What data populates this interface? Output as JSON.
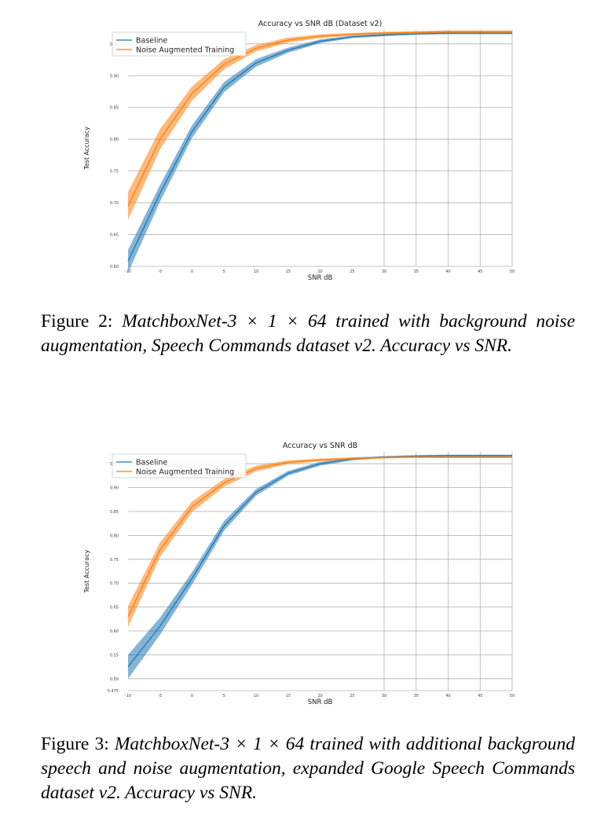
{
  "figures": [
    {
      "caption": {
        "label": "Figure 2:",
        "text": "MatchboxNet-3 × 1 × 64 trained with background noise augmentation, Speech Commands dataset v2. Accuracy vs SNR."
      }
    },
    {
      "caption": {
        "label": "Figure 3:",
        "text": "MatchboxNet-3 × 1 × 64 trained with additional background speech and noise augmentation, expanded Google Speech Commands dataset v2. Accuracy vs SNR."
      }
    }
  ],
  "chart_data": [
    {
      "type": "line",
      "title": "Accuracy vs SNR dB (Dataset v2)",
      "xlabel": "SNR dB",
      "ylabel": "Test Accuracy",
      "x_tick_labels": [
        "-10",
        "-5",
        "0",
        "5",
        "10",
        "15",
        "20",
        "25",
        "30",
        "35",
        "40",
        "45",
        "50"
      ],
      "y_ticks": [
        0.6,
        0.65,
        0.7,
        0.75,
        0.8,
        0.85,
        0.9,
        0.95
      ],
      "y_tick_labels": [
        "0.60",
        "0.65",
        "0.70",
        "0.75",
        "0.80",
        "0.85",
        "0.90",
        "0.95"
      ],
      "ylim": [
        0.6,
        0.972
      ],
      "grid": true,
      "legend": "top-left",
      "series": [
        {
          "name": "Baseline",
          "color": "#1f77b4",
          "values": [
            0.608,
            0.715,
            0.812,
            0.882,
            0.92,
            0.94,
            0.954,
            0.961,
            0.964,
            0.966,
            0.967,
            0.967,
            0.967
          ],
          "band": [
            0.018,
            0.013,
            0.01,
            0.008,
            0.006,
            0.004,
            0.003,
            0.002,
            0.002,
            0.002,
            0.002,
            0.002,
            0.002
          ]
        },
        {
          "name": "Noise Augmented Training",
          "color": "#ff7f0e",
          "values": [
            0.695,
            0.8,
            0.872,
            0.918,
            0.943,
            0.956,
            0.962,
            0.965,
            0.967,
            0.968,
            0.969,
            0.969,
            0.969
          ],
          "band": [
            0.022,
            0.016,
            0.011,
            0.008,
            0.005,
            0.004,
            0.003,
            0.002,
            0.002,
            0.002,
            0.002,
            0.002,
            0.002
          ]
        }
      ]
    },
    {
      "type": "line",
      "title": "Accuracy vs SNR dB",
      "xlabel": "SNR dB",
      "ylabel": "Test Accuracy",
      "x_tick_labels": [
        "-10",
        "-5",
        "0",
        "5",
        "10",
        "15",
        "20",
        "25",
        "30",
        "35",
        "40",
        "45",
        "50"
      ],
      "y_ticks": [
        0.475,
        0.5,
        0.55,
        0.6,
        0.65,
        0.7,
        0.75,
        0.8,
        0.85,
        0.9,
        0.95
      ],
      "y_tick_labels": [
        "0.475",
        "0.50",
        "0.55",
        "0.60",
        "0.65",
        "0.70",
        "0.75",
        "0.80",
        "0.85",
        "0.90",
        "0.95"
      ],
      "ylim": [
        0.475,
        0.975
      ],
      "grid": true,
      "legend": "top-left",
      "series": [
        {
          "name": "Baseline",
          "color": "#1f77b4",
          "values": [
            0.525,
            0.61,
            0.71,
            0.82,
            0.89,
            0.93,
            0.95,
            0.96,
            0.964,
            0.966,
            0.967,
            0.967,
            0.967
          ],
          "band": [
            0.025,
            0.018,
            0.013,
            0.01,
            0.007,
            0.005,
            0.004,
            0.003,
            0.002,
            0.002,
            0.002,
            0.002,
            0.002
          ]
        },
        {
          "name": "Noise Augmented Training",
          "color": "#ff7f0e",
          "values": [
            0.63,
            0.77,
            0.86,
            0.91,
            0.94,
            0.953,
            0.958,
            0.961,
            0.963,
            0.964,
            0.964,
            0.964,
            0.964
          ],
          "band": [
            0.022,
            0.015,
            0.011,
            0.008,
            0.006,
            0.004,
            0.003,
            0.002,
            0.002,
            0.002,
            0.002,
            0.002,
            0.002
          ]
        }
      ]
    }
  ]
}
